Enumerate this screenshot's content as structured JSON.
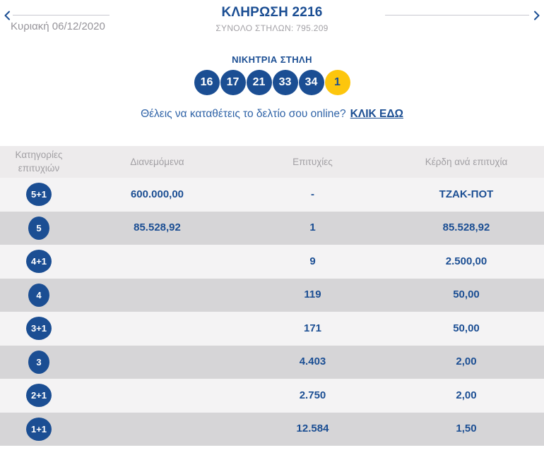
{
  "colors": {
    "brand_blue": "#1b4e93",
    "joker_yellow": "#fdc60d",
    "row_light": "#f4f3f4",
    "row_dark": "#d6d5d7",
    "header_bg": "#edebec"
  },
  "header": {
    "title": "ΚΛΗΡΩΣΗ 2216",
    "subtitle": "ΣΥΝΟΛΟ ΣΤΗΛΩΝ: 795.209",
    "date": "Κυριακή 06/12/2020"
  },
  "winning": {
    "title": "ΝΙΚΗΤΡΙΑ ΣΤΗΛΗ",
    "numbers": [
      "16",
      "17",
      "21",
      "33",
      "34"
    ],
    "bonus": "1"
  },
  "online": {
    "text": "Θέλεις να καταθέτεις το δελτίο σου online?",
    "link": "ΚΛΙΚ ΕΔΩ"
  },
  "table": {
    "headers": [
      "Κατηγορίες επιτυχιών",
      "Διανεμόμενα",
      "Επιτυχίες",
      "Κέρδη ανά επιτυχία"
    ],
    "rows": [
      {
        "category": "5+1",
        "distributed": "600.000,00",
        "wins": "-",
        "per_win": "ΤΖΑΚ-ΠΟΤ"
      },
      {
        "category": "5",
        "distributed": "85.528,92",
        "wins": "1",
        "per_win": "85.528,92"
      },
      {
        "category": "4+1",
        "distributed": "",
        "wins": "9",
        "per_win": "2.500,00"
      },
      {
        "category": "4",
        "distributed": "",
        "wins": "119",
        "per_win": "50,00"
      },
      {
        "category": "3+1",
        "distributed": "",
        "wins": "171",
        "per_win": "50,00"
      },
      {
        "category": "3",
        "distributed": "",
        "wins": "4.403",
        "per_win": "2,00"
      },
      {
        "category": "2+1",
        "distributed": "",
        "wins": "2.750",
        "per_win": "2,00"
      },
      {
        "category": "1+1",
        "distributed": "",
        "wins": "12.584",
        "per_win": "1,50"
      }
    ]
  }
}
